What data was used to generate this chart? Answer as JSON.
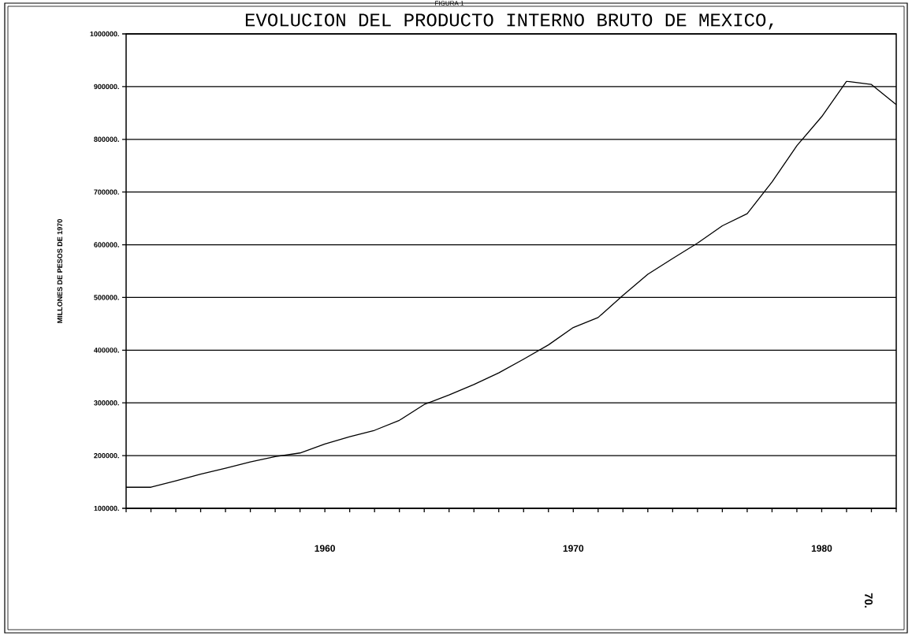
{
  "chart_data": {
    "type": "line",
    "title": "EVOLUCION DEL PRODUCTO INTERNO BRUTO DE MEXICO,",
    "ylabel": "MILLONES DE PESOS DE 1970",
    "annotations": [
      "FIGURA 1",
      "70."
    ],
    "x": [
      1952,
      1953,
      1954,
      1955,
      1956,
      1957,
      1958,
      1959,
      1960,
      1961,
      1962,
      1963,
      1964,
      1965,
      1966,
      1967,
      1968,
      1969,
      1970,
      1971,
      1972,
      1973,
      1974,
      1975,
      1976,
      1977,
      1978,
      1979,
      1980,
      1981,
      1982,
      1983
    ],
    "series": [
      {
        "color": "#000000",
        "values": [
          140000,
          140000,
          152000,
          165000,
          176000,
          188000,
          198000,
          205000,
          222000,
          236000,
          248000,
          267000,
          297000,
          315000,
          335000,
          357000,
          383000,
          410000,
          443000,
          462000,
          504000,
          544000,
          574000,
          603000,
          636000,
          659000,
          719000,
          788000,
          843000,
          910000,
          904000,
          866000
        ]
      }
    ],
    "xlim": [
      1952,
      1983
    ],
    "xticks": [
      {
        "value": 1952,
        "label": null
      },
      {
        "value": 1953,
        "label": null
      },
      {
        "value": 1954,
        "label": null
      },
      {
        "value": 1955,
        "label": null
      },
      {
        "value": 1956,
        "label": null
      },
      {
        "value": 1957,
        "label": null
      },
      {
        "value": 1958,
        "label": null
      },
      {
        "value": 1959,
        "label": null
      },
      1960,
      {
        "value": 1961,
        "label": null
      },
      {
        "value": 1962,
        "label": null
      },
      {
        "value": 1963,
        "label": null
      },
      {
        "value": 1964,
        "label": null
      },
      {
        "value": 1965,
        "label": null
      },
      {
        "value": 1966,
        "label": null
      },
      {
        "value": 1967,
        "label": null
      },
      {
        "value": 1968,
        "label": null
      },
      {
        "value": 1969,
        "label": null
      },
      1970,
      {
        "value": 1971,
        "label": null
      },
      {
        "value": 1972,
        "label": null
      },
      {
        "value": 1973,
        "label": null
      },
      {
        "value": 1974,
        "label": null
      },
      {
        "value": 1975,
        "label": null
      },
      {
        "value": 1976,
        "label": null
      },
      {
        "value": 1977,
        "label": null
      },
      {
        "value": 1978,
        "label": null
      },
      {
        "value": 1979,
        "label": null
      },
      1980,
      {
        "value": 1981,
        "label": null
      },
      {
        "value": 1982,
        "label": null
      },
      {
        "value": 1983,
        "label": null
      }
    ],
    "ylim": [
      100000,
      1000000
    ],
    "yticks": [
      {
        "value": 100000,
        "label": "100000."
      },
      {
        "value": 200000,
        "label": "200000."
      },
      {
        "value": 300000,
        "label": "300000."
      },
      {
        "value": 400000,
        "label": "400000."
      },
      {
        "value": 500000,
        "label": "500000."
      },
      {
        "value": 600000,
        "label": "600000."
      },
      {
        "value": 700000,
        "label": "700000."
      },
      {
        "value": 800000,
        "label": "800000."
      },
      {
        "value": 900000,
        "label": "900000."
      },
      {
        "value": 1000000,
        "label": "1000000."
      }
    ],
    "grid": "y",
    "marker": "none",
    "line_style": "solid"
  }
}
